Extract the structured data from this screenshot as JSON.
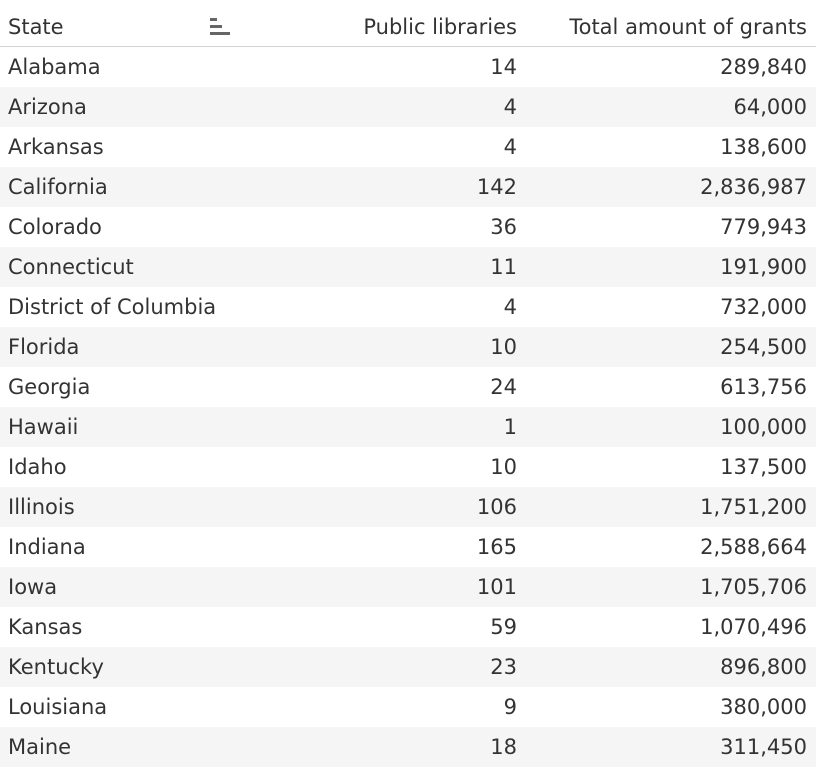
{
  "table": {
    "columns": [
      "State",
      "Public libraries",
      "Total amount of grants"
    ],
    "rows": [
      [
        "Alabama",
        "14",
        "289,840"
      ],
      [
        "Arizona",
        "4",
        "64,000"
      ],
      [
        "Arkansas",
        "4",
        "138,600"
      ],
      [
        "California",
        "142",
        "2,836,987"
      ],
      [
        "Colorado",
        "36",
        "779,943"
      ],
      [
        "Connecticut",
        "11",
        "191,900"
      ],
      [
        "District of Columbia",
        "4",
        "732,000"
      ],
      [
        "Florida",
        "10",
        "254,500"
      ],
      [
        "Georgia",
        "24",
        "613,756"
      ],
      [
        "Hawaii",
        "1",
        "100,000"
      ],
      [
        "Idaho",
        "10",
        "137,500"
      ],
      [
        "Illinois",
        "106",
        "1,751,200"
      ],
      [
        "Indiana",
        "165",
        "2,588,664"
      ],
      [
        "Iowa",
        "101",
        "1,705,706"
      ],
      [
        "Kansas",
        "59",
        "1,070,496"
      ],
      [
        "Kentucky",
        "23",
        "896,800"
      ],
      [
        "Louisiana",
        "9",
        "380,000"
      ],
      [
        "Maine",
        "18",
        "311,450"
      ]
    ]
  }
}
